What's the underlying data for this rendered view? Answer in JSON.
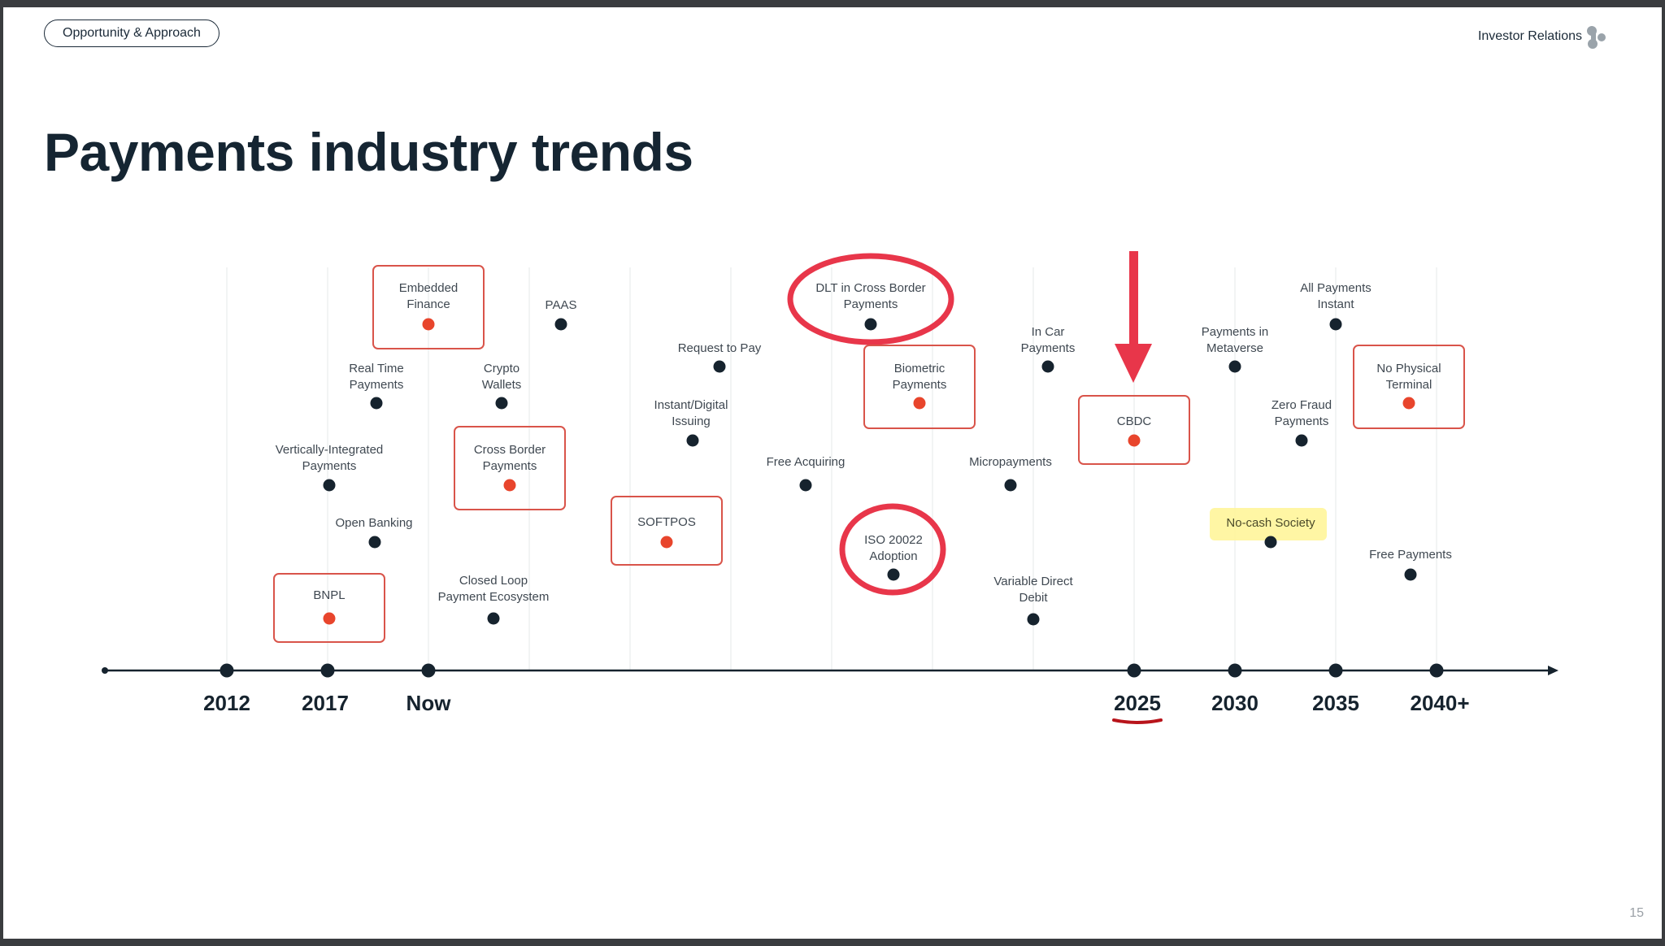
{
  "header": {
    "section_pill": "Opportunity & Approach",
    "brand_text": "Investor Relations",
    "brand_icon": "cluster-dots-icon"
  },
  "title": "Payments industry trends",
  "page_number": "15",
  "colors": {
    "dark": "#16232e",
    "accent_red": "#e8452c",
    "box_border": "#d9544a",
    "annotation_red": "#e8364a",
    "highlight_yellow": "#fff59a",
    "grid": "#e6e8ea"
  },
  "axis": {
    "year_labels": [
      "2012",
      "2017",
      "Now",
      "2025",
      "2030",
      "2035",
      "2040+"
    ],
    "emphasized_year": "2025"
  },
  "trends": [
    {
      "id": "embedded-finance",
      "lines": [
        "Embedded",
        "Finance"
      ],
      "style": "boxed"
    },
    {
      "id": "paas",
      "lines": [
        "PAAS"
      ],
      "style": "plain"
    },
    {
      "id": "dlt-cross-border",
      "lines": [
        "DLT in Cross Border",
        "Payments"
      ],
      "style": "circled"
    },
    {
      "id": "all-payments-instant",
      "lines": [
        "All Payments",
        "Instant"
      ],
      "style": "plain"
    },
    {
      "id": "request-to-pay",
      "lines": [
        "Request to Pay"
      ],
      "style": "plain"
    },
    {
      "id": "in-car-payments",
      "lines": [
        "In Car",
        "Payments"
      ],
      "style": "plain"
    },
    {
      "id": "payments-in-metaverse",
      "lines": [
        "Payments in",
        "Metaverse"
      ],
      "style": "plain"
    },
    {
      "id": "real-time-payments",
      "lines": [
        "Real Time",
        "Payments"
      ],
      "style": "plain"
    },
    {
      "id": "crypto-wallets",
      "lines": [
        "Crypto",
        "Wallets"
      ],
      "style": "plain"
    },
    {
      "id": "biometric-payments",
      "lines": [
        "Biometric",
        "Payments"
      ],
      "style": "boxed"
    },
    {
      "id": "no-physical-terminal",
      "lines": [
        "No Physical",
        "Terminal"
      ],
      "style": "boxed"
    },
    {
      "id": "instant-digital-issuing",
      "lines": [
        "Instant/Digital",
        "Issuing"
      ],
      "style": "plain"
    },
    {
      "id": "zero-fraud-payments",
      "lines": [
        "Zero Fraud",
        "Payments"
      ],
      "style": "plain"
    },
    {
      "id": "cbdc",
      "lines": [
        "CBDC"
      ],
      "style": "boxed"
    },
    {
      "id": "vertically-integrated",
      "lines": [
        "Vertically-Integrated",
        "Payments"
      ],
      "style": "plain"
    },
    {
      "id": "cross-border-payments",
      "lines": [
        "Cross Border",
        "Payments"
      ],
      "style": "boxed"
    },
    {
      "id": "free-acquiring",
      "lines": [
        "Free Acquiring"
      ],
      "style": "plain"
    },
    {
      "id": "micropayments",
      "lines": [
        "Micropayments"
      ],
      "style": "plain"
    },
    {
      "id": "open-banking",
      "lines": [
        "Open Banking"
      ],
      "style": "plain"
    },
    {
      "id": "softpos",
      "lines": [
        "SOFTPOS"
      ],
      "style": "boxed"
    },
    {
      "id": "iso-20022",
      "lines": [
        "ISO 20022",
        "Adoption"
      ],
      "style": "circled"
    },
    {
      "id": "no-cash-society",
      "lines": [
        "No-cash Society"
      ],
      "style": "highlighted"
    },
    {
      "id": "free-payments",
      "lines": [
        "Free Payments"
      ],
      "style": "plain"
    },
    {
      "id": "bnpl",
      "lines": [
        "BNPL"
      ],
      "style": "boxed"
    },
    {
      "id": "closed-loop",
      "lines": [
        "Closed Loop",
        "Payment Ecosystem"
      ],
      "style": "plain"
    },
    {
      "id": "variable-direct-debit",
      "lines": [
        "Variable Direct",
        "Debit"
      ],
      "style": "plain"
    }
  ]
}
